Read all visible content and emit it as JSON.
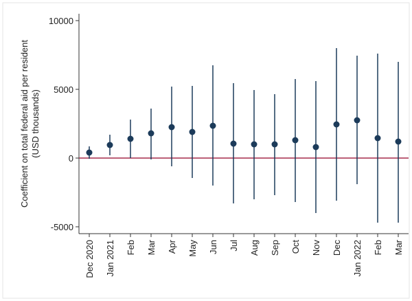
{
  "chart_data": {
    "type": "errorbar",
    "ylabel": [
      "Coefficient on total federal aid per resident",
      "(USD thousands)"
    ],
    "categories": [
      "Dec 2020",
      "Jan 2021",
      "Feb",
      "Mar",
      "Apr",
      "May",
      "Jun",
      "Jul",
      "Aug",
      "Sep",
      "Oct",
      "Nov",
      "Dec",
      "Jan 2022",
      "Feb",
      "Mar"
    ],
    "series": [
      {
        "color": "#1c3b5a",
        "values": [
          400,
          950,
          1400,
          1800,
          2250,
          1900,
          2350,
          1050,
          1000,
          1000,
          1300,
          800,
          2450,
          2750,
          1450,
          1200
        ],
        "lower": [
          -50,
          200,
          0,
          -100,
          -600,
          -1450,
          -2000,
          -3300,
          -3000,
          -2700,
          -3200,
          -4000,
          -3100,
          -1900,
          -4700,
          -4700
        ],
        "upper": [
          850,
          1700,
          2800,
          3600,
          5200,
          5250,
          6750,
          5450,
          4950,
          4650,
          5750,
          5600,
          8000,
          7450,
          7600,
          7000
        ]
      }
    ],
    "reference_line": {
      "value": 0,
      "color": "#a52a4a"
    },
    "ylim": [
      -5500,
      10500
    ],
    "yticks": [
      10000,
      5000,
      0,
      -5000
    ],
    "grid": false
  }
}
